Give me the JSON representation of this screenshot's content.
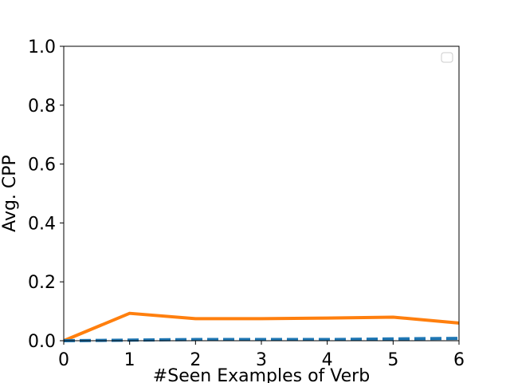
{
  "chart_data": {
    "type": "line",
    "title": "",
    "xlabel": "#Seen Examples of Verb",
    "ylabel": "Avg. CPP",
    "xlim": [
      0,
      6
    ],
    "ylim": [
      0.0,
      1.0
    ],
    "x_ticks": [
      0,
      1,
      2,
      3,
      4,
      5,
      6
    ],
    "x_tick_labels": [
      "0",
      "1",
      "2",
      "3",
      "4",
      "5",
      "6"
    ],
    "y_ticks": [
      0.0,
      0.2,
      0.4,
      0.6,
      0.8,
      1.0
    ],
    "y_tick_labels": [
      "0.0",
      "0.2",
      "0.4",
      "0.6",
      "0.8",
      "1.0"
    ],
    "grid": false,
    "legend": "top-right",
    "x": [
      0,
      1,
      2,
      3,
      4,
      5,
      6
    ],
    "series": [
      {
        "color": "#ff7f0e",
        "style": "solid",
        "values": [
          0.0,
          0.093,
          0.075,
          0.075,
          0.077,
          0.08,
          0.06
        ]
      },
      {
        "color": "#1f77b4",
        "style": "dashed",
        "values": [
          0.0,
          0.002,
          0.004,
          0.004,
          0.004,
          0.006,
          0.008
        ]
      }
    ]
  }
}
